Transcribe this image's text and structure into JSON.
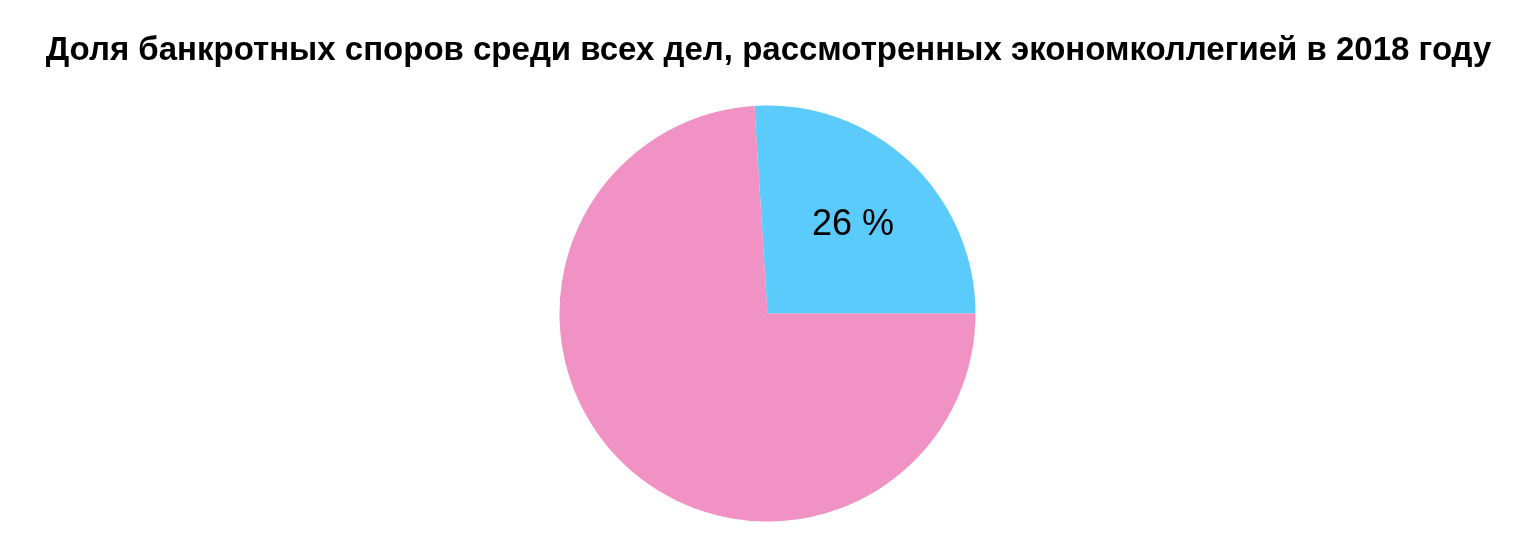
{
  "chart_data": {
    "type": "pie",
    "title": "Доля банкротных споров среди всех дел, рассмотренных экономколлегией в 2018 году",
    "categories": [
      null,
      null
    ],
    "values": [
      26,
      74
    ],
    "colors": [
      "#5acbfa",
      "#f093c4"
    ],
    "value_labels": [
      "26 %",
      null
    ]
  }
}
